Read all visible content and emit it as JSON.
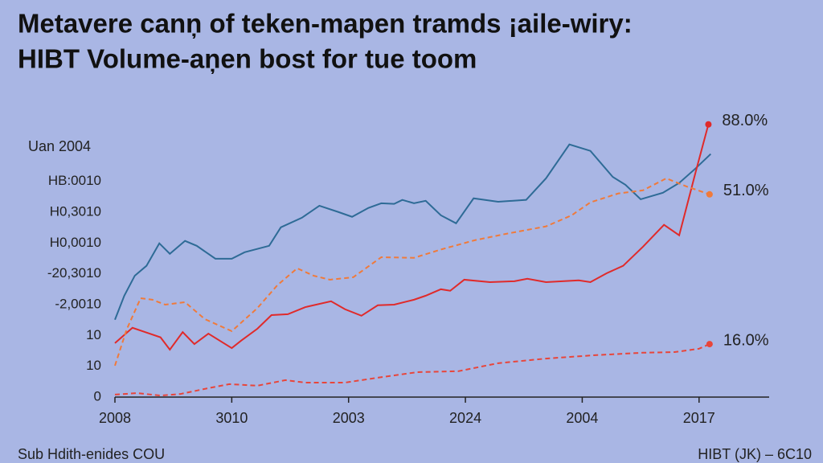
{
  "chart_data": {
    "type": "line",
    "title": [
      "Metavere canņ of teken-mapen tramds ¡aile-wiry:",
      "HIBT Volume-aņen bost for tue toom"
    ],
    "annotation": "Uan 2004",
    "footer_left": "Sub Hdith-enides COU",
    "footer_right": "HIBT (JK) – 6C10",
    "xlim": [
      0,
      5.6
    ],
    "xticks": [
      {
        "value": 0,
        "label": "2008"
      },
      {
        "value": 1,
        "label": "3010"
      },
      {
        "value": 2,
        "label": "2003"
      },
      {
        "value": 3,
        "label": "2024"
      },
      {
        "value": 4,
        "label": "2004"
      },
      {
        "value": 5,
        "label": "2017"
      }
    ],
    "ylim": [
      0,
      9
    ],
    "yticks": [
      {
        "value": 7,
        "label": "HB:0010"
      },
      {
        "value": 6,
        "label": "H0,3010"
      },
      {
        "value": 5,
        "label": "H0,0010"
      },
      {
        "value": 4,
        "label": "-20,3010"
      },
      {
        "value": 3,
        "label": "-2,0010"
      },
      {
        "value": 2,
        "label": "10"
      },
      {
        "value": 1,
        "label": "10"
      },
      {
        "value": 0,
        "label": "0"
      }
    ],
    "series": [
      {
        "color": "#2e6b96",
        "dashed": false,
        "x": [
          0,
          0.08,
          0.17,
          0.27,
          0.38,
          0.47,
          0.6,
          0.7,
          0.86,
          1.0,
          1.11,
          1.32,
          1.42,
          1.6,
          1.75,
          1.91,
          2.03,
          2.17,
          2.28,
          2.39,
          2.46,
          2.56,
          2.66,
          2.79,
          2.92,
          3.07,
          3.28,
          3.52,
          3.69,
          3.89,
          4.07,
          4.26,
          4.37,
          4.5,
          4.69,
          4.83,
          4.97,
          5.1
        ],
        "values": [
          2.51,
          3.29,
          3.94,
          4.26,
          4.99,
          4.65,
          5.07,
          4.91,
          4.49,
          4.49,
          4.7,
          4.91,
          5.51,
          5.82,
          6.21,
          6.01,
          5.85,
          6.14,
          6.29,
          6.27,
          6.4,
          6.29,
          6.37,
          5.9,
          5.64,
          6.45,
          6.34,
          6.4,
          7.1,
          8.2,
          7.99,
          7.15,
          6.89,
          6.42,
          6.63,
          6.95,
          7.42,
          7.89
        ]
      },
      {
        "color": "#e02a2a",
        "dashed": false,
        "end_label": "88.0%",
        "x": [
          0,
          0.15,
          0.29,
          0.39,
          0.47,
          0.58,
          0.68,
          0.8,
          1.0,
          1.08,
          1.22,
          1.34,
          1.48,
          1.63,
          1.85,
          1.97,
          2.11,
          2.25,
          2.39,
          2.56,
          2.66,
          2.79,
          2.87,
          2.99,
          3.21,
          3.42,
          3.53,
          3.69,
          3.97,
          4.07,
          4.21,
          4.35,
          4.52,
          4.7,
          4.83,
          4.97,
          5.08
        ],
        "values": [
          1.75,
          2.25,
          2.07,
          1.94,
          1.54,
          2.11,
          1.72,
          2.06,
          1.59,
          1.83,
          2.22,
          2.66,
          2.69,
          2.92,
          3.11,
          2.85,
          2.64,
          2.98,
          3.0,
          3.16,
          3.29,
          3.5,
          3.45,
          3.81,
          3.73,
          3.76,
          3.84,
          3.73,
          3.79,
          3.73,
          4.02,
          4.26,
          4.88,
          5.59,
          5.25,
          7.29,
          8.85
        ]
      },
      {
        "color": "#f07a3a",
        "dashed": true,
        "end_label": "51.0%",
        "x": [
          0,
          0.1,
          0.22,
          0.32,
          0.43,
          0.6,
          0.77,
          1.0,
          1.22,
          1.39,
          1.56,
          1.7,
          1.84,
          2.04,
          2.28,
          2.56,
          2.8,
          3.08,
          3.35,
          3.69,
          3.91,
          4.07,
          4.31,
          4.52,
          4.72,
          4.89,
          5.09
        ],
        "values": [
          1.02,
          2.19,
          3.21,
          3.16,
          3.0,
          3.08,
          2.53,
          2.14,
          2.89,
          3.63,
          4.18,
          3.94,
          3.81,
          3.89,
          4.54,
          4.52,
          4.8,
          5.09,
          5.3,
          5.54,
          5.9,
          6.32,
          6.61,
          6.71,
          7.1,
          6.84,
          6.58
        ]
      },
      {
        "color": "#e8453a",
        "dashed": true,
        "end_label": "16.0%",
        "x": [
          0,
          0.19,
          0.39,
          0.56,
          0.8,
          0.98,
          1.22,
          1.46,
          1.63,
          1.97,
          2.25,
          2.59,
          2.94,
          3.28,
          3.69,
          4.11,
          4.52,
          4.79,
          5.0,
          5.09
        ],
        "values": [
          0.08,
          0.13,
          0.05,
          0.1,
          0.29,
          0.42,
          0.37,
          0.55,
          0.47,
          0.47,
          0.63,
          0.81,
          0.84,
          1.1,
          1.25,
          1.36,
          1.44,
          1.46,
          1.57,
          1.72
        ]
      }
    ]
  }
}
